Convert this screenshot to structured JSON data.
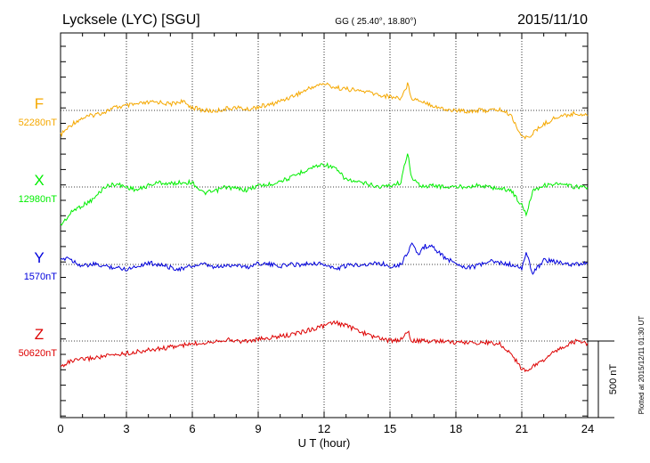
{
  "header": {
    "station": "Lycksele (LYC)  [SGU]",
    "coords": "GG ( 25.40°,  18.80°)",
    "date": "2015/11/10"
  },
  "plotted_note": "Plotted at 2015/12/11 01:30 UT",
  "scale_label": "500 nT",
  "chart_data": {
    "type": "line",
    "xlabel": "U T (hour)",
    "xlim": [
      0,
      24
    ],
    "xticks": [
      "0",
      "3",
      "6",
      "9",
      "12",
      "15",
      "18",
      "21",
      "24"
    ],
    "ylabel": "",
    "grid": true,
    "series": [
      {
        "name": "F",
        "baseline_label": "52280nT",
        "color": "#f5a800",
        "x": [
          0,
          0.3,
          0.6,
          1,
          1.5,
          2,
          2.5,
          3,
          3.5,
          4,
          4.5,
          5,
          5.5,
          6,
          6.5,
          7,
          7.5,
          8,
          8.5,
          9,
          9.5,
          10,
          10.5,
          11,
          11.5,
          12,
          12.5,
          13,
          13.5,
          14,
          14.5,
          15,
          15.5,
          15.8,
          16,
          16.5,
          17,
          17.5,
          18,
          18.5,
          19,
          19.5,
          20,
          20.5,
          21,
          21.2,
          21.5,
          22,
          22.5,
          23,
          23.5,
          24
        ],
        "y": [
          -160,
          -120,
          -80,
          -50,
          -30,
          -10,
          20,
          30,
          40,
          50,
          55,
          40,
          60,
          20,
          0,
          -5,
          10,
          20,
          5,
          25,
          35,
          60,
          90,
          120,
          155,
          175,
          150,
          140,
          130,
          120,
          100,
          90,
          80,
          170,
          80,
          60,
          30,
          5,
          0,
          -5,
          0,
          0,
          5,
          -30,
          -170,
          -180,
          -150,
          -90,
          -50,
          -30,
          -20,
          -30
        ]
      },
      {
        "name": "X",
        "baseline_label": "12980nT",
        "color": "#00ee00",
        "x": [
          0,
          0.3,
          0.6,
          1,
          1.5,
          2,
          2.5,
          3,
          3.5,
          4,
          4.5,
          5,
          5.5,
          6,
          6.5,
          7,
          7.5,
          8,
          8.5,
          9,
          9.5,
          10,
          10.5,
          11,
          11.5,
          12,
          12.5,
          13,
          13.5,
          14,
          14.5,
          15,
          15.5,
          15.8,
          16,
          16.3,
          16.6,
          17,
          17.5,
          18,
          18.5,
          19,
          19.5,
          20,
          20.5,
          21,
          21.2,
          21.5,
          22,
          22.5,
          23,
          23.5,
          24
        ],
        "y": [
          -250,
          -200,
          -150,
          -120,
          -80,
          0,
          20,
          0,
          -20,
          10,
          30,
          20,
          30,
          30,
          -40,
          -30,
          0,
          -10,
          -20,
          10,
          15,
          40,
          60,
          100,
          130,
          150,
          120,
          50,
          30,
          20,
          0,
          10,
          30,
          230,
          50,
          20,
          0,
          10,
          0,
          0,
          5,
          10,
          0,
          -10,
          -20,
          -120,
          -180,
          -20,
          10,
          20,
          10,
          0,
          0
        ]
      },
      {
        "name": "Y",
        "baseline_label": "1570nT",
        "color": "#0000dd",
        "x": [
          0,
          0.3,
          0.6,
          1,
          1.5,
          2,
          2.5,
          3,
          3.5,
          4,
          4.5,
          5,
          5.5,
          6,
          6.5,
          7,
          7.5,
          8,
          8.5,
          9,
          9.5,
          10,
          10.5,
          11,
          11.5,
          12,
          12.5,
          13,
          13.5,
          14,
          14.5,
          15,
          15.5,
          15.8,
          16,
          16.3,
          16.6,
          17,
          17.5,
          18,
          18.5,
          19,
          19.5,
          20,
          20.5,
          21,
          21.2,
          21.5,
          22,
          22.5,
          23,
          23.5,
          24
        ],
        "y": [
          20,
          50,
          20,
          -10,
          0,
          -10,
          -20,
          -30,
          -10,
          10,
          0,
          -20,
          -30,
          -10,
          0,
          -20,
          -10,
          0,
          -20,
          10,
          0,
          -10,
          0,
          0,
          10,
          0,
          -30,
          -10,
          0,
          0,
          10,
          -10,
          0,
          80,
          140,
          60,
          120,
          110,
          40,
          10,
          -20,
          -10,
          20,
          10,
          0,
          -30,
          80,
          -60,
          30,
          20,
          0,
          0,
          10
        ]
      },
      {
        "name": "Z",
        "baseline_label": "50620nT",
        "color": "#dd0000",
        "x": [
          0,
          0.3,
          0.6,
          1,
          1.5,
          2,
          2.5,
          3,
          3.5,
          4,
          4.5,
          5,
          5.5,
          6,
          6.5,
          7,
          7.5,
          8,
          8.5,
          9,
          9.5,
          10,
          10.5,
          11,
          11.5,
          12,
          12.5,
          13,
          13.5,
          14,
          14.5,
          15,
          15.5,
          15.8,
          16,
          16.5,
          17,
          17.5,
          18,
          18.5,
          19,
          19.5,
          20,
          20.5,
          21,
          21.2,
          21.5,
          22,
          22.5,
          23,
          23.5,
          24
        ],
        "y": [
          -170,
          -140,
          -130,
          -120,
          -110,
          -100,
          -90,
          -80,
          -70,
          -60,
          -50,
          -40,
          -30,
          -20,
          -10,
          0,
          10,
          0,
          0,
          10,
          20,
          30,
          40,
          60,
          80,
          100,
          120,
          100,
          70,
          40,
          20,
          0,
          10,
          70,
          0,
          0,
          0,
          0,
          -10,
          -10,
          -10,
          -10,
          -20,
          -80,
          -180,
          -190,
          -170,
          -120,
          -70,
          -30,
          0,
          -20
        ]
      }
    ]
  }
}
